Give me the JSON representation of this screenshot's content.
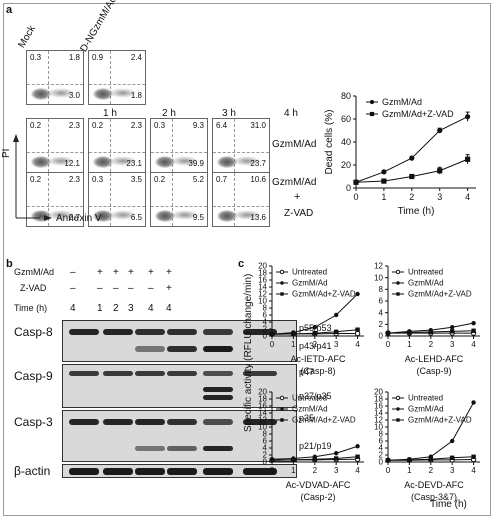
{
  "panel_a": {
    "letter": "a",
    "headers": {
      "mock": "Mock",
      "dng": "D-NGzmM/Ad",
      "h1": "1 h",
      "h2": "2 h",
      "h3": "3 h",
      "h4": "4 h"
    },
    "row_labels": {
      "gzm": "GzmM/Ad",
      "gzm2": "GzmM/Ad",
      "plus": "+",
      "zvad": "Z-VAD"
    },
    "axis": {
      "y": "PI",
      "x": "Annexin V"
    },
    "top_row": [
      {
        "ul": "0.3",
        "ur": "1.8",
        "lr": "3.0"
      },
      {
        "ul": "0.9",
        "ur": "2.4",
        "lr": "1.8"
      }
    ],
    "mid_row": [
      {
        "ul": "0.2",
        "ur": "2.3",
        "lr": "12.1"
      },
      {
        "ul": "0.2",
        "ur": "2.3",
        "lr": "23.1"
      },
      {
        "ul": "0.3",
        "ur": "9.3",
        "lr": "39.9"
      },
      {
        "ul": "6.4",
        "ur": "31.0",
        "lr": "23.7"
      }
    ],
    "bot_row": [
      {
        "ul": "0.2",
        "ur": "2.3",
        "lr": "2.7"
      },
      {
        "ul": "0.3",
        "ur": "3.5",
        "lr": "6.5"
      },
      {
        "ul": "0.2",
        "ur": "5.2",
        "lr": "9.5"
      },
      {
        "ul": "0.7",
        "ur": "10.6",
        "lr": "13.6"
      }
    ]
  },
  "panel_b": {
    "letter": "b",
    "conditions": {
      "gzm_label": "GzmM/Ad",
      "zvad_label": "Z-VAD",
      "time_label": "Time (h)"
    },
    "gzm_marks": [
      "–",
      "+",
      "+",
      "+",
      "+",
      "+"
    ],
    "zvad_marks": [
      "–",
      "–",
      "–",
      "–",
      "–",
      "+"
    ],
    "time_marks": [
      "4",
      "1",
      "2",
      "3",
      "4",
      "4"
    ],
    "blots": [
      {
        "name": "Casp-8",
        "right": [
          "p55/p53",
          "p43/p41"
        ]
      },
      {
        "name": "Casp-9",
        "right": [
          "p47",
          "p37/p35"
        ]
      },
      {
        "name": "Casp-3",
        "right": [
          "p35",
          "p21/p19"
        ]
      },
      {
        "name": "β-actin",
        "right": []
      }
    ]
  },
  "panel_c": {
    "letter": "c",
    "ylabel": "Specific activity (RFLU change/min)",
    "xlabel": "Time (h)"
  },
  "chart_data": [
    {
      "type": "line",
      "id": "dead-cells",
      "xlabel": "Time (h)",
      "ylabel": "Dead cells (%)",
      "xlim": [
        0,
        4.3
      ],
      "ylim": [
        0,
        80
      ],
      "xticks": [
        0,
        1,
        2,
        3,
        4
      ],
      "yticks": [
        0,
        20,
        40,
        60,
        80
      ],
      "x": [
        0,
        1,
        2,
        3,
        4
      ],
      "legend": "top-left",
      "series": [
        {
          "name": "GzmM/Ad",
          "marker": "circle",
          "values": [
            5,
            14,
            26,
            50,
            62
          ],
          "err": [
            0,
            1,
            1.5,
            2,
            4
          ]
        },
        {
          "name": "GzmM/Ad+Z-VAD",
          "marker": "square",
          "values": [
            5,
            6,
            10,
            15,
            25
          ],
          "err": [
            0,
            1,
            1,
            3,
            4
          ]
        }
      ]
    },
    {
      "type": "line",
      "id": "casp8-activity",
      "title": "Ac-IETD-AFC",
      "subtitle": "(Casp-8)",
      "xlim": [
        0,
        4.3
      ],
      "ylim": [
        0,
        20
      ],
      "xticks": [
        0,
        1,
        2,
        3,
        4
      ],
      "yticks": [
        0,
        2,
        4,
        6,
        8,
        10,
        12,
        14,
        16,
        18,
        20
      ],
      "x": [
        0,
        1,
        2,
        3,
        4
      ],
      "legend": "top-left",
      "series": [
        {
          "name": "Untreated",
          "marker": "open-circle",
          "values": [
            0.5,
            0.6,
            0.6,
            0.7,
            0.7
          ]
        },
        {
          "name": "GzmM/Ad",
          "marker": "circle",
          "values": [
            0.5,
            1.0,
            2.5,
            6.0,
            12.0
          ]
        },
        {
          "name": "GzmM/Ad+Z-VAD",
          "marker": "square",
          "values": [
            0.5,
            0.6,
            0.8,
            1.2,
            1.8
          ]
        }
      ]
    },
    {
      "type": "line",
      "id": "casp9-activity",
      "title": "Ac-LEHD-AFC",
      "subtitle": "(Casp-9)",
      "xlim": [
        0,
        4.3
      ],
      "ylim": [
        0,
        12
      ],
      "xticks": [
        0,
        1,
        2,
        3,
        4
      ],
      "yticks": [
        0,
        2,
        4,
        6,
        8,
        10,
        12
      ],
      "x": [
        0,
        1,
        2,
        3,
        4
      ],
      "legend": "top-left",
      "series": [
        {
          "name": "Untreated",
          "marker": "open-circle",
          "values": [
            0.5,
            0.5,
            0.5,
            0.5,
            0.5
          ]
        },
        {
          "name": "GzmM/Ad",
          "marker": "circle",
          "values": [
            0.5,
            0.8,
            1.0,
            1.5,
            2.2
          ]
        },
        {
          "name": "GzmM/Ad+Z-VAD",
          "marker": "square",
          "values": [
            0.5,
            0.6,
            0.7,
            0.8,
            0.9
          ]
        }
      ]
    },
    {
      "type": "line",
      "id": "casp2-activity",
      "title": "Ac-VDVAD-AFC",
      "subtitle": "(Casp-2)",
      "xlim": [
        0,
        4.3
      ],
      "ylim": [
        0,
        20
      ],
      "xticks": [
        0,
        1,
        2,
        3,
        4
      ],
      "yticks": [
        0,
        2,
        4,
        6,
        8,
        10,
        12,
        14,
        16,
        18,
        20
      ],
      "x": [
        0,
        1,
        2,
        3,
        4
      ],
      "legend": "top-left",
      "series": [
        {
          "name": "Untreated",
          "marker": "open-circle",
          "values": [
            0.5,
            0.6,
            0.6,
            0.7,
            0.8
          ]
        },
        {
          "name": "GzmM/Ad",
          "marker": "circle",
          "values": [
            0.8,
            1.0,
            1.5,
            2.5,
            4.5
          ]
        },
        {
          "name": "GzmM/Ad+Z-VAD",
          "marker": "square",
          "values": [
            0.5,
            0.6,
            0.8,
            1.0,
            1.5
          ]
        }
      ]
    },
    {
      "type": "line",
      "id": "casp37-activity",
      "title": "Ac-DEVD-AFC",
      "subtitle": "(Casp-3&7)",
      "xlim": [
        0,
        4.3
      ],
      "ylim": [
        0,
        20
      ],
      "xticks": [
        0,
        1,
        2,
        3,
        4
      ],
      "yticks": [
        0,
        2,
        4,
        6,
        8,
        10,
        12,
        14,
        16,
        18,
        20
      ],
      "x": [
        0,
        1,
        2,
        3,
        4
      ],
      "legend": "top-left",
      "series": [
        {
          "name": "Untreated",
          "marker": "open-circle",
          "values": [
            0.5,
            0.5,
            0.6,
            0.6,
            0.7
          ]
        },
        {
          "name": "GzmM/Ad",
          "marker": "circle",
          "values": [
            0.5,
            0.8,
            1.5,
            6.0,
            17.0
          ]
        },
        {
          "name": "GzmM/Ad+Z-VAD",
          "marker": "square",
          "values": [
            0.5,
            0.6,
            0.8,
            1.2,
            1.5
          ]
        }
      ]
    }
  ]
}
